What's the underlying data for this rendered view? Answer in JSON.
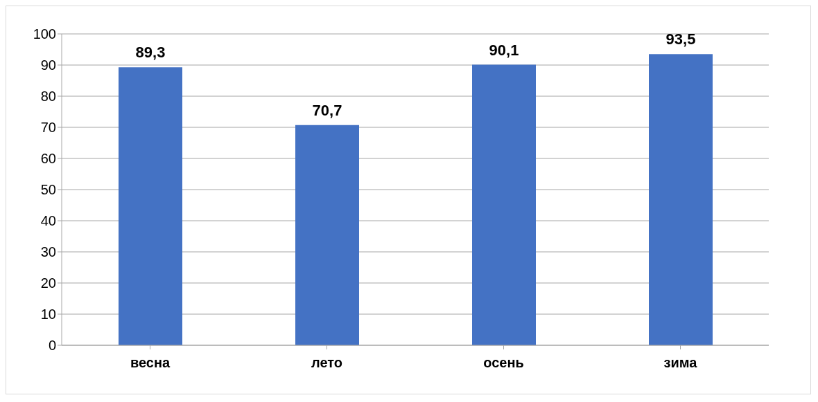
{
  "chart_data": {
    "type": "bar",
    "categories": [
      "весна",
      "лето",
      "осень",
      "зима"
    ],
    "values": [
      89.3,
      70.7,
      90.1,
      93.5
    ],
    "value_labels": [
      "89,3",
      "70,7",
      "90,1",
      "93,5"
    ],
    "color": "#4472c4",
    "ylim": [
      0,
      100
    ],
    "yticks": [
      0,
      10,
      20,
      30,
      40,
      50,
      60,
      70,
      80,
      90,
      100
    ],
    "grid": "y"
  }
}
